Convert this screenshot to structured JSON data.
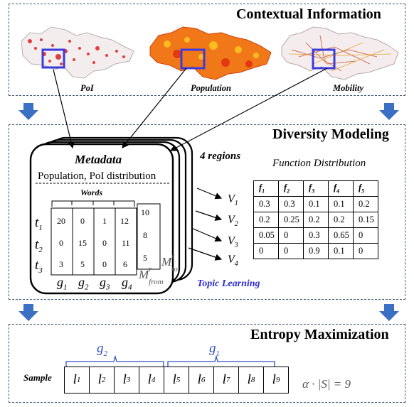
{
  "contextual": {
    "title": "Contextual Information",
    "maps": [
      {
        "label": "PoI"
      },
      {
        "label": "Population"
      },
      {
        "label": "Mobility"
      }
    ]
  },
  "diversity": {
    "title": "Diversity Modeling",
    "metadata_title": "Metadata",
    "metadata_subtitle": "Population, PoI distribution",
    "regions_label": "4 regions",
    "words_label": "Words",
    "topic_learning": "Topic Learning",
    "matrix": {
      "rows": [
        "t",
        "t",
        "t"
      ],
      "row_subs": [
        "1",
        "2",
        "3"
      ],
      "cols": [
        "g",
        "g",
        "g",
        "g"
      ],
      "col_subs": [
        "1",
        "2",
        "3",
        "4"
      ],
      "values": [
        [
          "20",
          "0",
          "1",
          "12"
        ],
        [
          "0",
          "15",
          "0",
          "11"
        ],
        [
          "3",
          "5",
          "0",
          "6"
        ]
      ],
      "side_values": [
        "10",
        "8",
        "5"
      ],
      "m_to": "M",
      "m_to_sub": "to",
      "m_to_sup": "r",
      "m_from": "M",
      "m_from_sub": "from",
      "m_from_sup": "r"
    },
    "vectors": [
      "V",
      "V",
      "V",
      "V"
    ],
    "vector_subs": [
      "1",
      "2",
      "3",
      "4"
    ],
    "function_distribution": {
      "title": "Function Distribution",
      "headers": [
        "f",
        "f",
        "f",
        "f",
        "f"
      ],
      "header_subs": [
        "1",
        "2",
        "3",
        "4",
        "5"
      ],
      "rows": [
        [
          "0.3",
          "0.3",
          "0.1",
          "0.1",
          "0.2"
        ],
        [
          "0.2",
          "0.25",
          "0.2",
          "0.2",
          "0.15"
        ],
        [
          "0.05",
          "0",
          "0.3",
          "0.65",
          "0"
        ],
        [
          "0",
          "0",
          "0.9",
          "0.1",
          "0"
        ]
      ]
    }
  },
  "entropy": {
    "title": "Entropy Maximization",
    "sample_label": "Sample",
    "groups": [
      {
        "label": "g",
        "sub": "2"
      },
      {
        "label": "g",
        "sub": "1"
      }
    ],
    "cells": [
      "l",
      "l",
      "l",
      "l",
      "l",
      "l",
      "l",
      "l",
      "l"
    ],
    "cell_subs": [
      "1",
      "2",
      "3",
      "4",
      "5",
      "6",
      "7",
      "8",
      "9"
    ],
    "formula": "α · |S| = 9"
  },
  "colors": {
    "panel_border": "#3c5a7a",
    "arrow_blue": "#3a6fc4",
    "highlight_box": "#3b3bdc",
    "group_blue": "#2f50c8",
    "topic_learning": "#2a2ad0"
  }
}
